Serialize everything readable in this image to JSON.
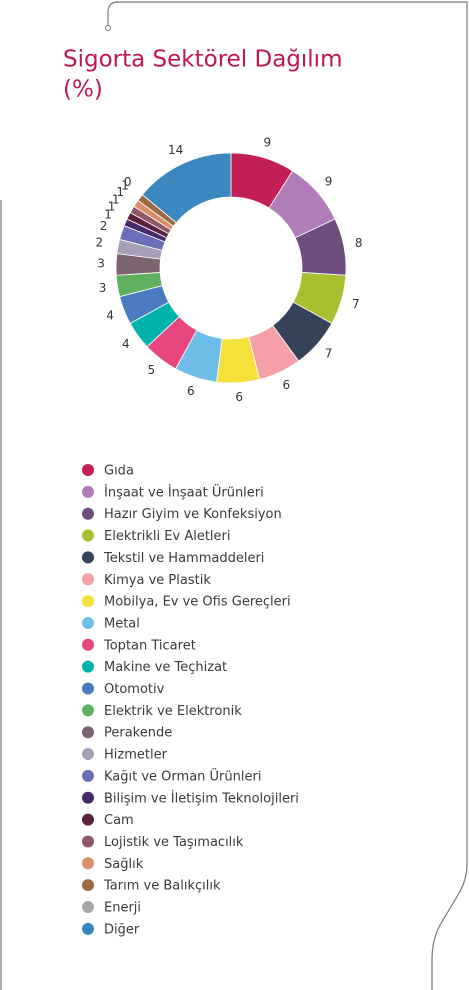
{
  "chart_data": {
    "type": "donut",
    "title": "Sigorta Sektörel Dağılım",
    "subtitle": "(%)",
    "categories": [
      "Gıda",
      "İnşaat ve İnşaat Ürünleri",
      "Hazır Giyim ve Konfeksiyon",
      "Elektrikli Ev Aletleri",
      "Tekstil ve Hammaddeleri",
      "Kimya ve Plastik",
      "Mobilya, Ev ve Ofis Gereçleri",
      "Metal",
      "Toptan Ticaret",
      "Makine ve Teçhizat",
      "Otomotiv",
      "Elektrik ve Elektronik",
      "Perakende",
      "Hizmetler",
      "Kağıt ve Orman Ürünleri",
      "Bilişim ve İletişim Teknolojileri",
      "Cam",
      "Lojistik ve Taşımacılık",
      "Sağlık",
      "Tarım ve Balıkçılık",
      "Enerji",
      "Diğer"
    ],
    "values": [
      9,
      9,
      8,
      7,
      7,
      6,
      6,
      6,
      5,
      4,
      4,
      3,
      3,
      2,
      2,
      1,
      1,
      1,
      1,
      1,
      0,
      14
    ],
    "colors": [
      "#c41e57",
      "#b07db8",
      "#6e4e7e",
      "#a8c030",
      "#34425a",
      "#f4a0a6",
      "#f4e13b",
      "#6dbde8",
      "#e8467f",
      "#00b2a9",
      "#4a7bc0",
      "#5fb05f",
      "#7d6270",
      "#a79fb5",
      "#6a6fb8",
      "#442c6a",
      "#5c2340",
      "#8f5866",
      "#d88f6a",
      "#9a6a40",
      "#a8a8a8",
      "#3b87bf"
    ]
  }
}
